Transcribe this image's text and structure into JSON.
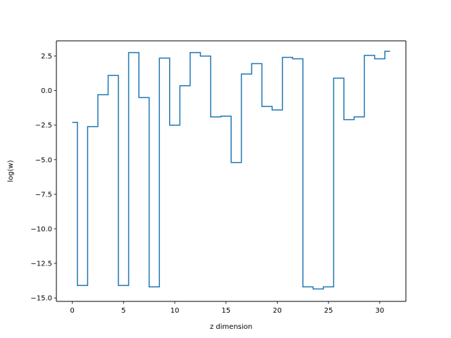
{
  "chart_data": {
    "type": "line",
    "drawstyle": "steps-mid",
    "title": "",
    "xlabel": "z dimension",
    "ylabel": "log(w)",
    "xlim": [
      -1.55,
      32.55
    ],
    "ylim": [
      -15.25,
      3.6
    ],
    "grid": false,
    "legend": "none",
    "xticks": [
      0,
      5,
      10,
      15,
      20,
      25,
      30
    ],
    "xtick_labels": [
      "0",
      "5",
      "10",
      "15",
      "20",
      "25",
      "30"
    ],
    "yticks": [
      2.5,
      0.0,
      -2.5,
      -5.0,
      -7.5,
      -10.0,
      -12.5,
      -15.0
    ],
    "ytick_labels": [
      "2.5",
      "0.0",
      "−2.5",
      "−5.0",
      "−7.5",
      "−10.0",
      "−12.5",
      "−15.0"
    ],
    "series": [
      {
        "color": "#1f77b4",
        "x": [
          0,
          1,
          2,
          3,
          4,
          5,
          6,
          7,
          8,
          9,
          10,
          11,
          12,
          13,
          14,
          15,
          16,
          17,
          18,
          19,
          20,
          21,
          22,
          23,
          24,
          25,
          26,
          27,
          28,
          29,
          30,
          31
        ],
        "y": [
          -2.3,
          -14.1,
          -2.6,
          -0.3,
          1.1,
          -14.1,
          2.75,
          -0.5,
          -14.2,
          2.35,
          -2.5,
          0.35,
          2.75,
          2.5,
          -1.9,
          -1.85,
          -5.2,
          1.2,
          1.95,
          -1.15,
          -1.4,
          2.4,
          2.3,
          -14.2,
          -14.35,
          -14.2,
          0.9,
          -2.1,
          -1.9,
          2.55,
          2.3,
          2.85
        ]
      }
    ]
  }
}
